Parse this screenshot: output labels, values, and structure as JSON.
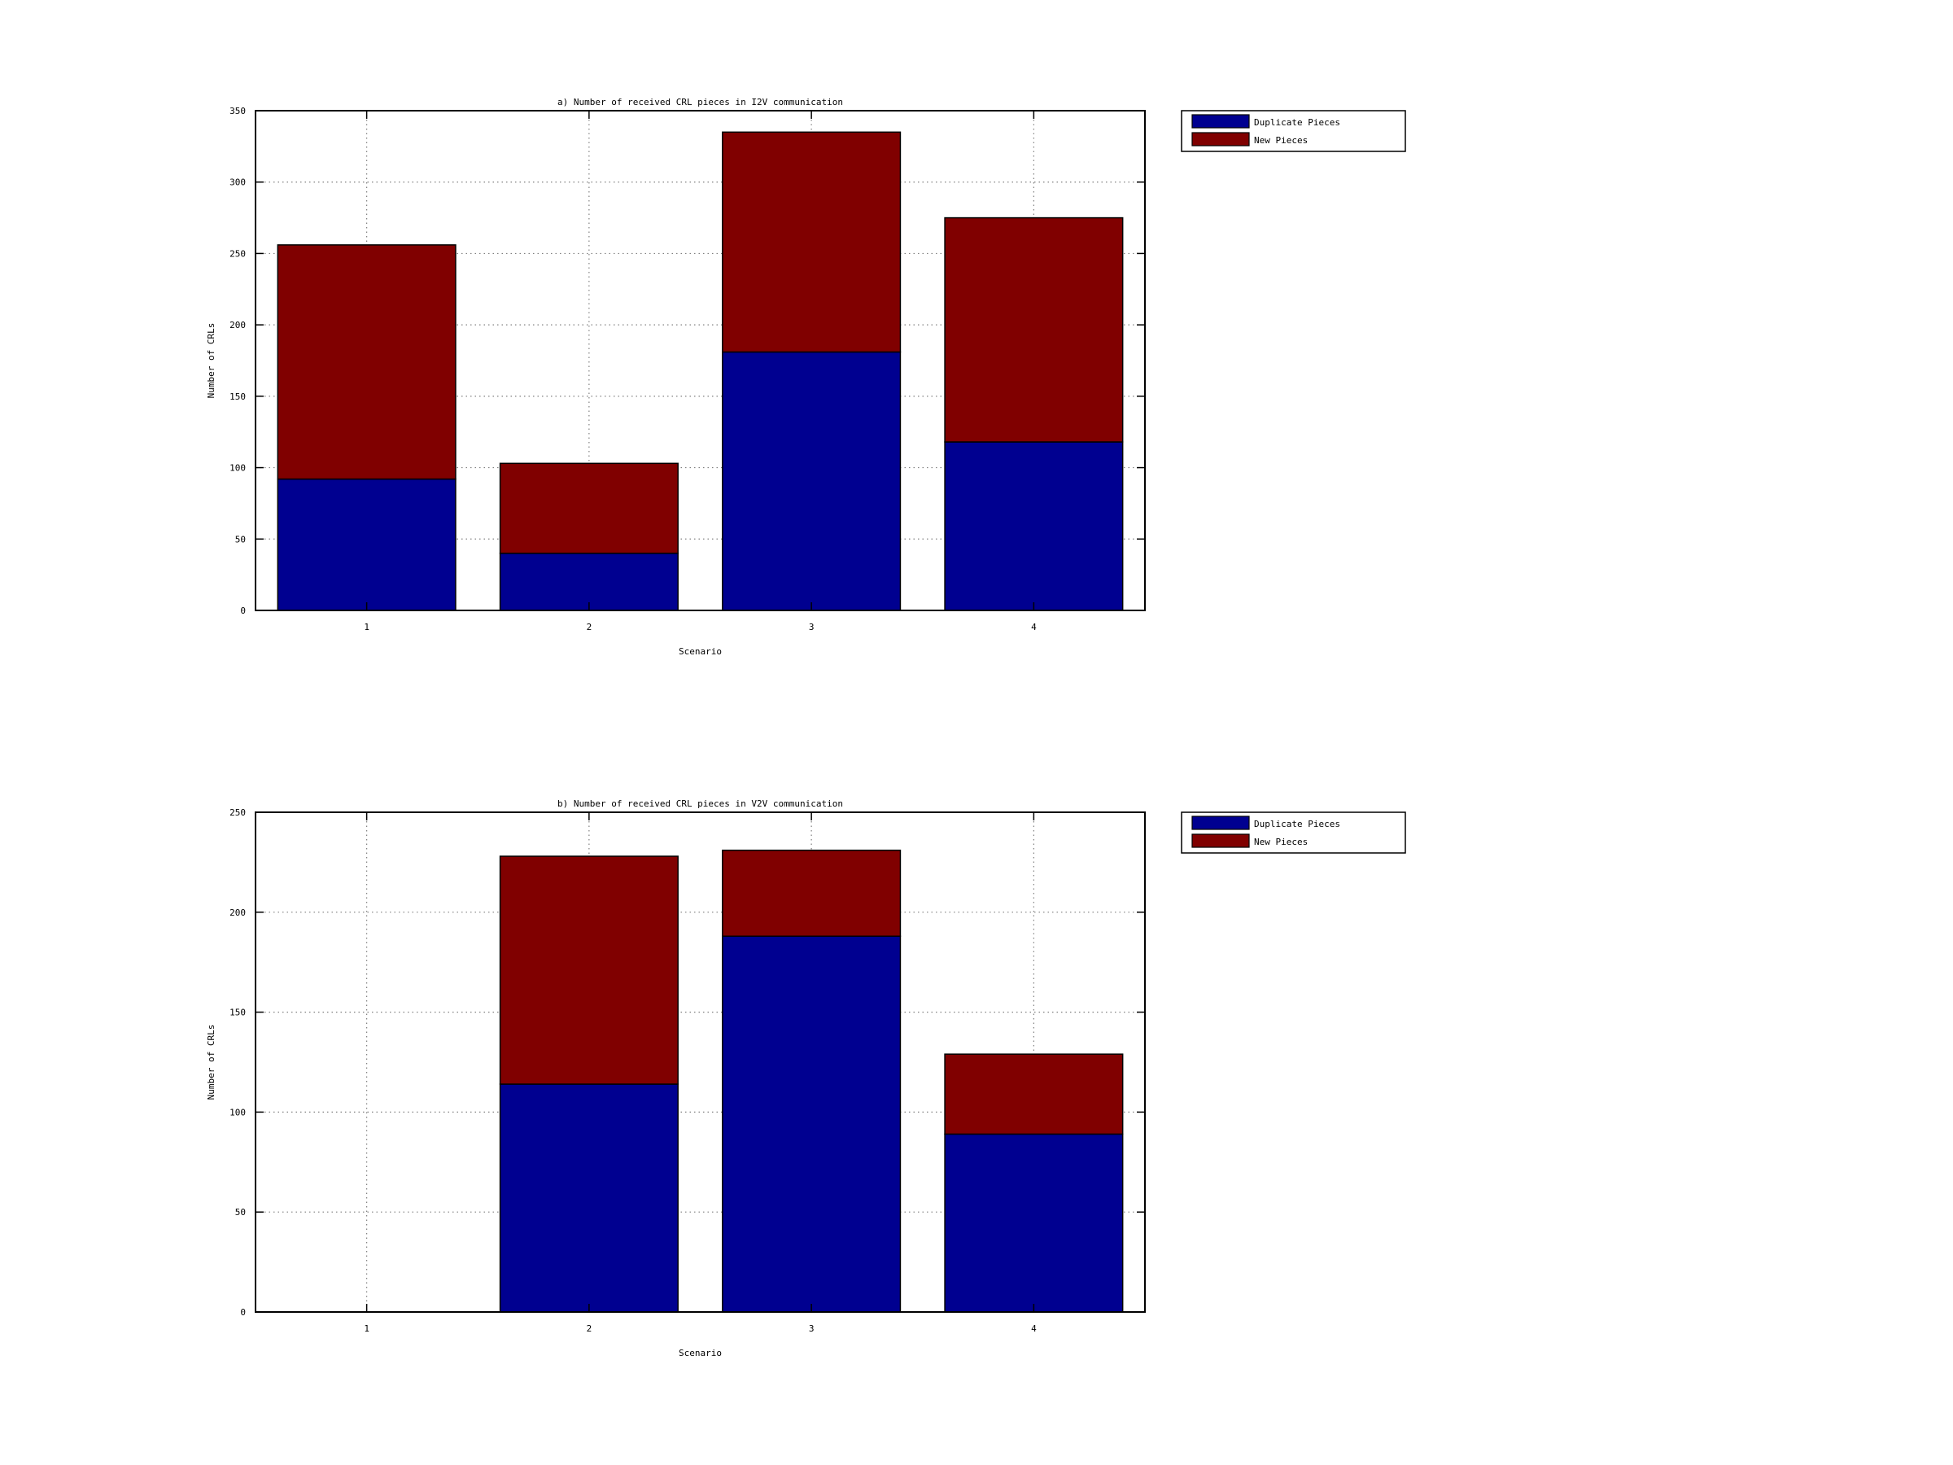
{
  "chart_data": [
    {
      "type": "bar",
      "stacked": true,
      "title": "a) Number of received CRL pieces in I2V communication",
      "xlabel": "Scenario",
      "ylabel": "Number of CRLs",
      "categories": [
        "1",
        "2",
        "3",
        "4"
      ],
      "ylim": [
        0,
        350
      ],
      "yticks": [
        "0",
        "50",
        "100",
        "150",
        "200",
        "250",
        "300",
        "350"
      ],
      "grid": true,
      "legend_position": "outside-top-right",
      "series": [
        {
          "name": "Duplicate Pieces",
          "color": "#000090",
          "values": [
            92,
            40,
            181,
            118
          ]
        },
        {
          "name": "New Pieces",
          "color": "#800000",
          "values": [
            164,
            63,
            154,
            157
          ]
        }
      ]
    },
    {
      "type": "bar",
      "stacked": true,
      "title": "b) Number of received CRL pieces in V2V communication",
      "xlabel": "Scenario",
      "ylabel": "Number of CRLs",
      "categories": [
        "1",
        "2",
        "3",
        "4"
      ],
      "ylim": [
        0,
        250
      ],
      "yticks": [
        "0",
        "50",
        "100",
        "150",
        "200",
        "250"
      ],
      "grid": true,
      "legend_position": "outside-top-right",
      "series": [
        {
          "name": "Duplicate Pieces",
          "color": "#000090",
          "values": [
            0,
            114,
            188,
            89
          ]
        },
        {
          "name": "New Pieces",
          "color": "#800000",
          "values": [
            0,
            114,
            43,
            40
          ]
        }
      ]
    }
  ]
}
